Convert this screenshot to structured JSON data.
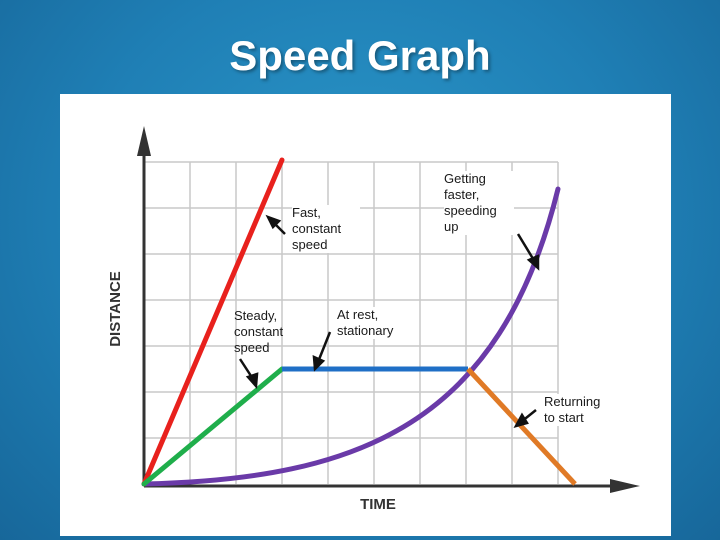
{
  "title": "Speed Graph",
  "axes": {
    "x_label": "TIME",
    "y_label": "DISTANCE"
  },
  "annotations": {
    "fast": "Fast,\nconstant\nspeed",
    "steady": "Steady,\nconstant\nspeed",
    "rest": "At rest,\nstationary",
    "faster": "Getting\nfaster,\nspeeding\nup",
    "returning": "Returning\nto start"
  },
  "lines": {
    "fast": {
      "color": "#e8211d"
    },
    "steady": {
      "color": "#1fae4b"
    },
    "rest": {
      "color": "#1f6fc6"
    },
    "faster": {
      "color": "#6a3aa8"
    },
    "returning": {
      "color": "#e07a26"
    }
  }
}
